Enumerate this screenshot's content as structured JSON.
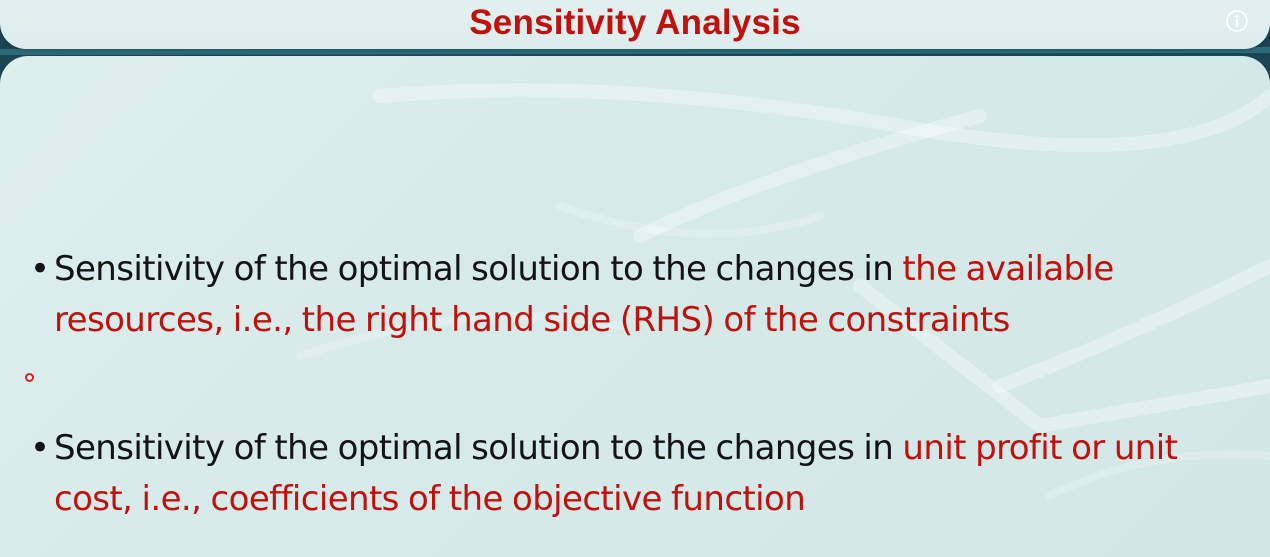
{
  "slide": {
    "title": "Sensitivity Analysis",
    "bullets": [
      {
        "lead": "Sensitivity of the optimal solution to the changes in ",
        "highlight": "the available resources, i.e., the right hand side (RHS) of the constraints"
      },
      {
        "lead": "Sensitivity of the optimal solution to the changes in ",
        "highlight": "unit profit or unit cost, i.e., coefficients of the objective function"
      }
    ],
    "bullet_symbol": "•"
  },
  "icons": {
    "info": "info-icon",
    "pointer": "laser-pointer-dot"
  },
  "colors": {
    "title": "#c0110d",
    "highlight": "#c0110d",
    "body_text": "#141414",
    "panel": "#d8ebea",
    "frame": "#1d4a58"
  }
}
